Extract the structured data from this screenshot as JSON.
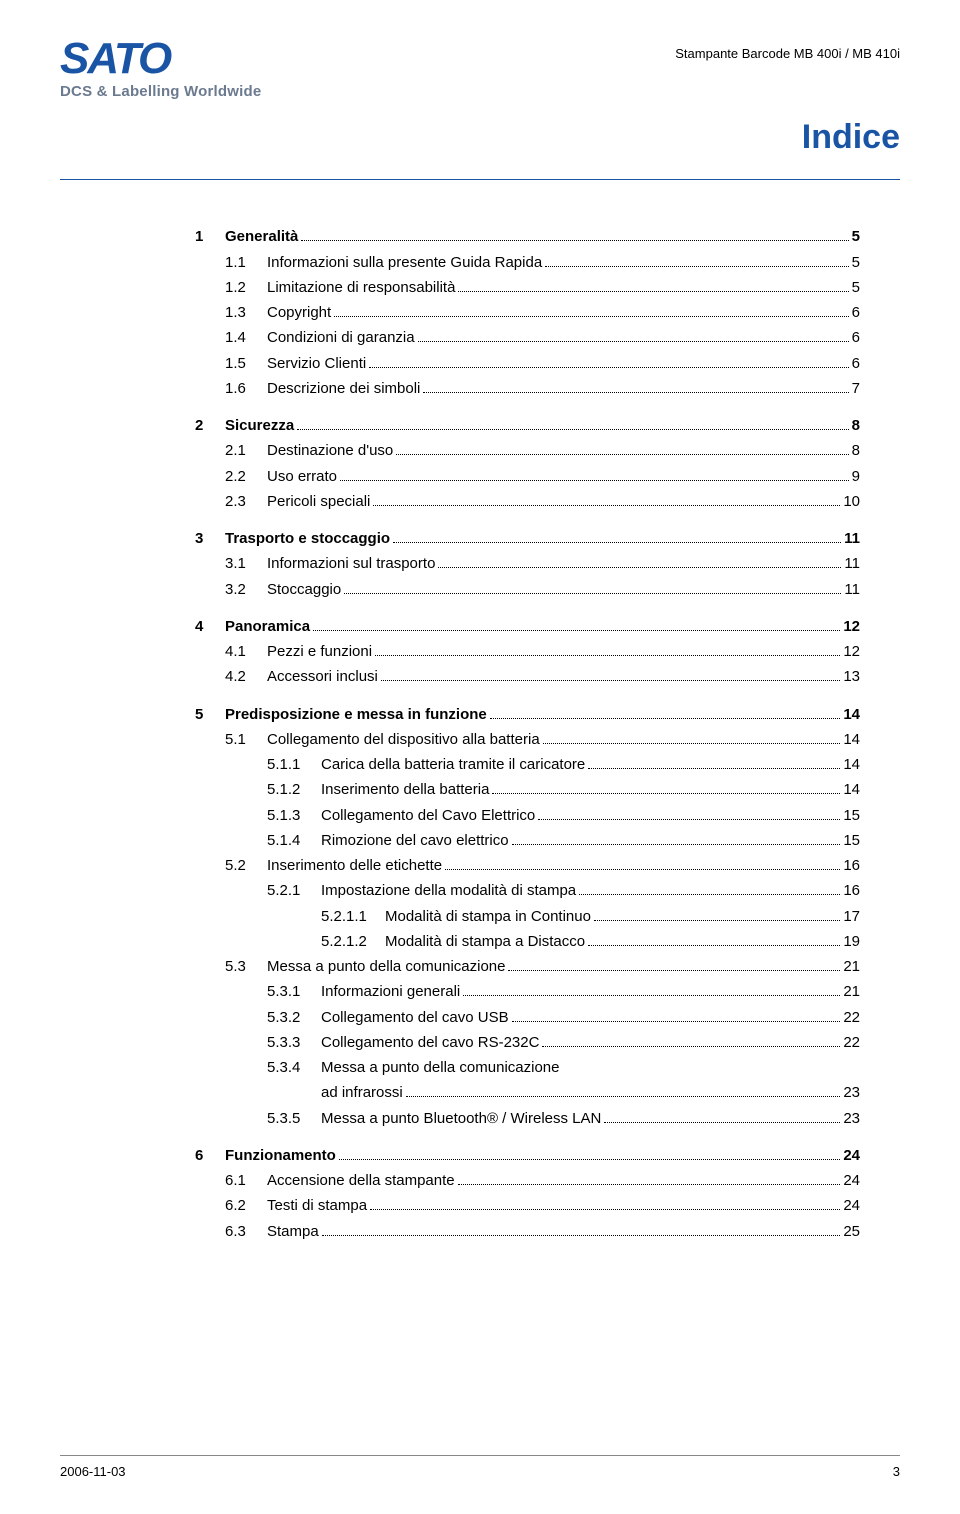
{
  "header": {
    "logo_text": "SATO",
    "tagline": "DCS & Labelling Worldwide",
    "doc_ref": "Stampante Barcode MB 400i / MB 410i",
    "page_title": "Indice"
  },
  "colors": {
    "accent": "#1a54a5",
    "tagline": "#6b7a8f",
    "text": "#000000",
    "background": "#ffffff"
  },
  "toc": [
    {
      "lvl": 1,
      "bold": true,
      "num": "1",
      "txt": "Generalità",
      "pg": "5",
      "section_start": true
    },
    {
      "lvl": 2,
      "num": "1.1",
      "txt": "Informazioni sulla presente Guida Rapida",
      "pg": "5"
    },
    {
      "lvl": 2,
      "num": "1.2",
      "txt": "Limitazione di responsabilità",
      "pg": "5"
    },
    {
      "lvl": 2,
      "num": "1.3",
      "txt": "Copyright",
      "pg": "6"
    },
    {
      "lvl": 2,
      "num": "1.4",
      "txt": "Condizioni di garanzia",
      "pg": "6"
    },
    {
      "lvl": 2,
      "num": "1.5",
      "txt": "Servizio Clienti",
      "pg": "6"
    },
    {
      "lvl": 2,
      "num": "1.6",
      "txt": "Descrizione dei simboli",
      "pg": "7",
      "section_end": true
    },
    {
      "lvl": 1,
      "bold": true,
      "num": "2",
      "txt": "Sicurezza",
      "pg": "8",
      "section_start": true
    },
    {
      "lvl": 2,
      "num": "2.1",
      "txt": "Destinazione d'uso",
      "pg": "8"
    },
    {
      "lvl": 2,
      "num": "2.2",
      "txt": "Uso errato",
      "pg": "9"
    },
    {
      "lvl": 2,
      "num": "2.3",
      "txt": "Pericoli speciali",
      "pg": "10",
      "section_end": true
    },
    {
      "lvl": 1,
      "bold": true,
      "num": "3",
      "txt": "Trasporto e stoccaggio",
      "pg": "11",
      "section_start": true
    },
    {
      "lvl": 2,
      "num": "3.1",
      "txt": "Informazioni sul trasporto",
      "pg": "11"
    },
    {
      "lvl": 2,
      "num": "3.2",
      "txt": "Stoccaggio",
      "pg": "11",
      "section_end": true
    },
    {
      "lvl": 1,
      "bold": true,
      "num": "4",
      "txt": "Panoramica",
      "pg": "12",
      "section_start": true
    },
    {
      "lvl": 2,
      "num": "4.1",
      "txt": "Pezzi e funzioni",
      "pg": "12"
    },
    {
      "lvl": 2,
      "num": "4.2",
      "txt": "Accessori inclusi",
      "pg": "13",
      "section_end": true
    },
    {
      "lvl": 1,
      "bold": true,
      "num": "5",
      "txt": "Predisposizione e messa in funzione",
      "pg": "14",
      "section_start": true
    },
    {
      "lvl": 2,
      "num": "5.1",
      "txt": "Collegamento del dispositivo alla batteria",
      "pg": "14"
    },
    {
      "lvl": 3,
      "num": "5.1.1",
      "txt": "Carica della batteria tramite il caricatore",
      "pg": "14"
    },
    {
      "lvl": 3,
      "num": "5.1.2",
      "txt": "Inserimento della batteria",
      "pg": "14"
    },
    {
      "lvl": 3,
      "num": "5.1.3",
      "txt": "Collegamento del Cavo Elettrico",
      "pg": "15"
    },
    {
      "lvl": 3,
      "num": "5.1.4",
      "txt": "Rimozione del cavo elettrico",
      "pg": "15"
    },
    {
      "lvl": 2,
      "num": "5.2",
      "txt": "Inserimento delle etichette",
      "pg": "16"
    },
    {
      "lvl": 3,
      "num": "5.2.1",
      "txt": "Impostazione della modalità di stampa",
      "pg": "16"
    },
    {
      "lvl": 4,
      "num": "5.2.1.1",
      "txt": "Modalità di stampa in Continuo",
      "pg": "17"
    },
    {
      "lvl": 4,
      "num": "5.2.1.2",
      "txt": "Modalità di stampa a Distacco",
      "pg": "19"
    },
    {
      "lvl": 2,
      "num": "5.3",
      "txt": "Messa a punto della comunicazione",
      "pg": "21"
    },
    {
      "lvl": 3,
      "num": "5.3.1",
      "txt": "Informazioni generali",
      "pg": "21"
    },
    {
      "lvl": 3,
      "num": "5.3.2",
      "txt": "Collegamento del cavo USB",
      "pg": "22"
    },
    {
      "lvl": 3,
      "num": "5.3.3",
      "txt": "Collegamento del cavo RS-232C",
      "pg": "22"
    },
    {
      "lvl": 3,
      "num": "5.3.4",
      "txt": "Messa a punto della comunicazione ad infrarossi",
      "pg": "23",
      "multiline": true
    },
    {
      "lvl": 3,
      "num": "5.3.5",
      "txt": "Messa a punto Bluetooth® / Wireless LAN",
      "pg": "23",
      "section_end": true
    },
    {
      "lvl": 1,
      "bold": true,
      "num": "6",
      "txt": "Funzionamento",
      "pg": "24",
      "section_start": true
    },
    {
      "lvl": 2,
      "num": "6.1",
      "txt": "Accensione della stampante",
      "pg": "24"
    },
    {
      "lvl": 2,
      "num": "6.2",
      "txt": "Testi di stampa",
      "pg": "24"
    },
    {
      "lvl": 2,
      "num": "6.3",
      "txt": "Stampa",
      "pg": "25",
      "section_end": true
    }
  ],
  "footer": {
    "date": "2006-11-03",
    "page": "3"
  }
}
